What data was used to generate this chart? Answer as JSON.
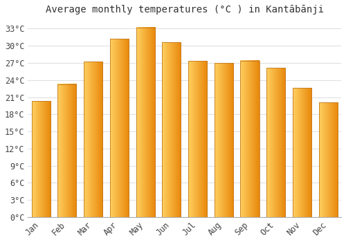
{
  "title": "Average monthly temperatures (°C ) in Kantābānji",
  "months": [
    "Jan",
    "Feb",
    "Mar",
    "Apr",
    "May",
    "Jun",
    "Jul",
    "Aug",
    "Sep",
    "Oct",
    "Nov",
    "Dec"
  ],
  "temperatures": [
    20.3,
    23.3,
    27.2,
    31.2,
    33.2,
    30.6,
    27.3,
    27.0,
    27.4,
    26.1,
    22.6,
    20.1
  ],
  "bar_color_left": "#FFD060",
  "bar_color_right": "#E8870A",
  "bar_border_color": "#C07820",
  "yticks": [
    0,
    3,
    6,
    9,
    12,
    15,
    18,
    21,
    24,
    27,
    30,
    33
  ],
  "ylim": [
    0,
    34.5
  ],
  "background_color": "#FFFFFF",
  "grid_color": "#E0E0E0",
  "title_fontsize": 10,
  "tick_fontsize": 8.5
}
